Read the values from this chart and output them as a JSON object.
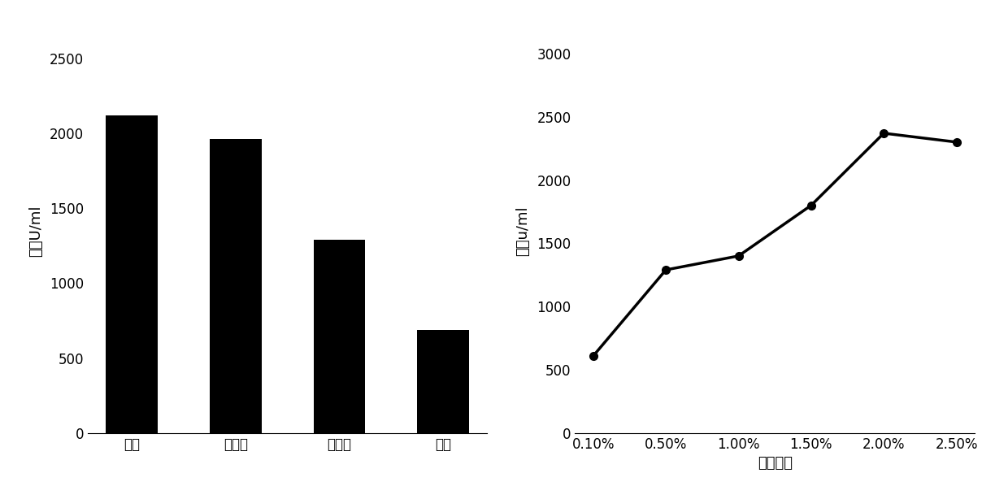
{
  "bar_categories": [
    "淡粉",
    "环糊精",
    "葡萄糖",
    "蕎糖"
  ],
  "bar_values": [
    2120,
    1960,
    1290,
    690
  ],
  "bar_ylabel": "酶活U/ml",
  "bar_ylim": [
    0,
    2700
  ],
  "bar_yticks": [
    0,
    500,
    1000,
    1500,
    2000,
    2500
  ],
  "bar_color": "#000000",
  "line_x_labels": [
    "0.10%",
    "0.50%",
    "1.00%",
    "1.50%",
    "2.00%",
    "2.50%"
  ],
  "line_x_values": [
    0,
    1,
    2,
    3,
    4,
    5
  ],
  "line_y_values": [
    610,
    1290,
    1400,
    1800,
    2370,
    2300
  ],
  "line_ylabel": "酶活u/ml",
  "line_xlabel": "淡粉含量",
  "line_ylim": [
    0,
    3200
  ],
  "line_yticks": [
    0,
    500,
    1000,
    1500,
    2000,
    2500,
    3000
  ],
  "line_color": "#000000",
  "marker": "o",
  "marker_size": 7,
  "line_width": 2.5,
  "background_color": "#ffffff",
  "font_size_label": 13,
  "font_size_tick": 12
}
